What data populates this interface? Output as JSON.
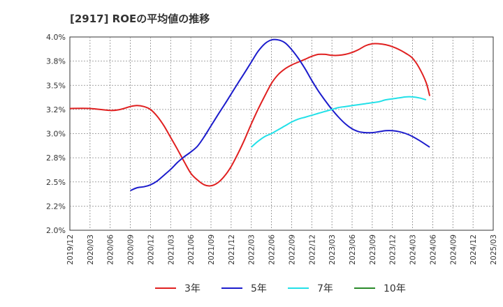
{
  "chart_data": {
    "type": "line",
    "title": "[2917]  ROEの平均値の推移",
    "x_ticks": [
      "2019/12",
      "2020/03",
      "2020/06",
      "2020/09",
      "2020/12",
      "2021/03",
      "2021/06",
      "2021/09",
      "2021/12",
      "2022/03",
      "2022/06",
      "2022/09",
      "2022/12",
      "2023/03",
      "2023/06",
      "2023/09",
      "2023/12",
      "2024/03",
      "2024/06",
      "2024/09",
      "2024/12",
      "2025/03"
    ],
    "y_ticks": [
      "4.0%",
      "3.8%",
      "3.5%",
      "3.2%",
      "3.0%",
      "2.8%",
      "2.5%",
      "2.2%",
      "2.0%"
    ],
    "ylim": [
      2.0,
      4.0
    ],
    "grid": true,
    "legend_position": "bottom",
    "series": [
      {
        "name": "3年",
        "color": "#e02020",
        "points": [
          [
            0,
            3.26
          ],
          [
            1,
            3.26
          ],
          [
            2,
            3.24
          ],
          [
            2.5,
            3.25
          ],
          [
            3,
            3.28
          ],
          [
            3.33,
            3.29
          ],
          [
            3.67,
            3.28
          ],
          [
            4,
            3.25
          ],
          [
            4.33,
            3.18
          ],
          [
            4.67,
            3.08
          ],
          [
            5,
            2.96
          ],
          [
            5.33,
            2.84
          ],
          [
            5.67,
            2.71
          ],
          [
            6,
            2.59
          ],
          [
            6.33,
            2.52
          ],
          [
            6.67,
            2.47
          ],
          [
            7,
            2.46
          ],
          [
            7.33,
            2.49
          ],
          [
            7.67,
            2.56
          ],
          [
            8,
            2.66
          ],
          [
            8.33,
            2.79
          ],
          [
            8.67,
            2.94
          ],
          [
            9,
            3.1
          ],
          [
            9.33,
            3.25
          ],
          [
            9.67,
            3.39
          ],
          [
            10,
            3.52
          ],
          [
            10.33,
            3.61
          ],
          [
            10.67,
            3.67
          ],
          [
            11,
            3.71
          ],
          [
            11.33,
            3.74
          ],
          [
            11.67,
            3.77
          ],
          [
            12,
            3.8
          ],
          [
            12.33,
            3.82
          ],
          [
            12.67,
            3.82
          ],
          [
            13,
            3.81
          ],
          [
            13.33,
            3.81
          ],
          [
            13.67,
            3.82
          ],
          [
            14,
            3.84
          ],
          [
            14.33,
            3.87
          ],
          [
            14.67,
            3.91
          ],
          [
            15,
            3.93
          ],
          [
            15.33,
            3.93
          ],
          [
            15.67,
            3.92
          ],
          [
            16,
            3.9
          ],
          [
            16.33,
            3.87
          ],
          [
            16.67,
            3.83
          ],
          [
            17,
            3.78
          ],
          [
            17.33,
            3.68
          ],
          [
            17.67,
            3.53
          ],
          [
            17.85,
            3.39
          ]
        ]
      },
      {
        "name": "5年",
        "color": "#1c1ccc",
        "points": [
          [
            3,
            2.41
          ],
          [
            3.33,
            2.44
          ],
          [
            3.67,
            2.45
          ],
          [
            4,
            2.47
          ],
          [
            4.33,
            2.51
          ],
          [
            4.67,
            2.57
          ],
          [
            5,
            2.63
          ],
          [
            5.33,
            2.7
          ],
          [
            5.67,
            2.76
          ],
          [
            6,
            2.81
          ],
          [
            6.33,
            2.87
          ],
          [
            6.67,
            2.97
          ],
          [
            7,
            3.08
          ],
          [
            7.33,
            3.19
          ],
          [
            7.67,
            3.3
          ],
          [
            8,
            3.41
          ],
          [
            8.33,
            3.52
          ],
          [
            8.67,
            3.63
          ],
          [
            9,
            3.74
          ],
          [
            9.33,
            3.85
          ],
          [
            9.67,
            3.93
          ],
          [
            10,
            3.97
          ],
          [
            10.33,
            3.97
          ],
          [
            10.67,
            3.94
          ],
          [
            11,
            3.87
          ],
          [
            11.33,
            3.78
          ],
          [
            11.67,
            3.67
          ],
          [
            12,
            3.55
          ],
          [
            12.33,
            3.44
          ],
          [
            12.67,
            3.34
          ],
          [
            13,
            3.25
          ],
          [
            13.33,
            3.17
          ],
          [
            13.67,
            3.1
          ],
          [
            14,
            3.05
          ],
          [
            14.33,
            3.02
          ],
          [
            14.67,
            3.01
          ],
          [
            15,
            3.01
          ],
          [
            15.33,
            3.02
          ],
          [
            15.67,
            3.03
          ],
          [
            16,
            3.03
          ],
          [
            16.33,
            3.02
          ],
          [
            16.67,
            3.0
          ],
          [
            17,
            2.97
          ],
          [
            17.33,
            2.93
          ],
          [
            17.85,
            2.86
          ]
        ]
      },
      {
        "name": "7年",
        "color": "#22e0e8",
        "points": [
          [
            9,
            2.86
          ],
          [
            9.33,
            2.92
          ],
          [
            9.67,
            2.97
          ],
          [
            10,
            3.0
          ],
          [
            10.33,
            3.04
          ],
          [
            10.67,
            3.08
          ],
          [
            11,
            3.12
          ],
          [
            11.33,
            3.15
          ],
          [
            11.67,
            3.17
          ],
          [
            12,
            3.19
          ],
          [
            12.33,
            3.21
          ],
          [
            12.67,
            3.23
          ],
          [
            13,
            3.25
          ],
          [
            13.33,
            3.27
          ],
          [
            13.67,
            3.28
          ],
          [
            14,
            3.29
          ],
          [
            14.33,
            3.3
          ],
          [
            14.67,
            3.31
          ],
          [
            15,
            3.32
          ],
          [
            15.33,
            3.33
          ],
          [
            15.67,
            3.35
          ],
          [
            16,
            3.36
          ],
          [
            16.33,
            3.37
          ],
          [
            16.67,
            3.38
          ],
          [
            17,
            3.38
          ],
          [
            17.33,
            3.37
          ],
          [
            17.67,
            3.35
          ]
        ]
      },
      {
        "name": "10年",
        "color": "#2a8a2a",
        "points": []
      }
    ]
  }
}
